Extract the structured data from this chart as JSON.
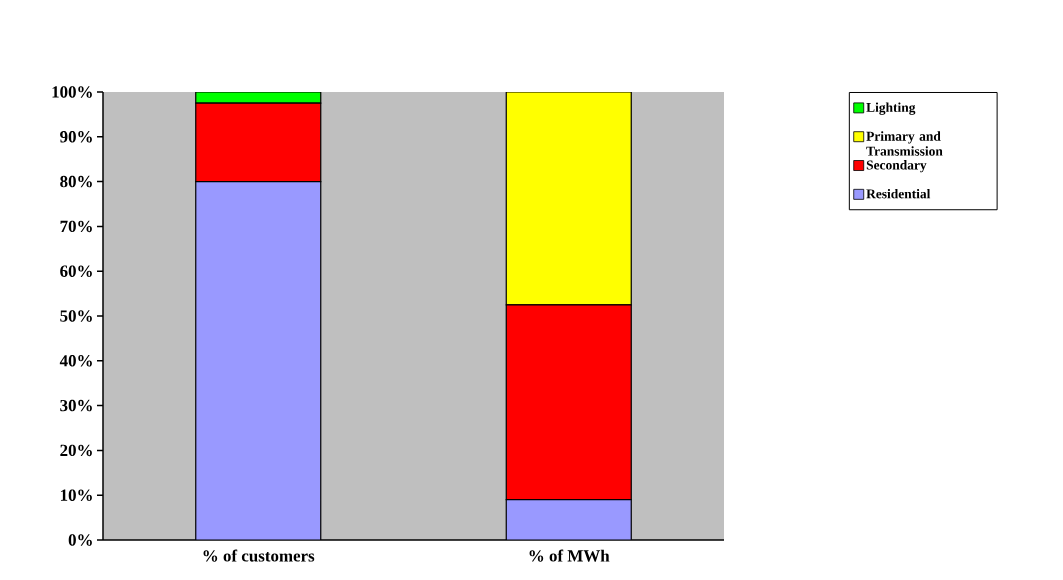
{
  "chart_data": {
    "type": "bar",
    "stacked": true,
    "legend": "right",
    "categories": [
      "% of customers",
      "% of MWh"
    ],
    "series": [
      {
        "name": "Residential",
        "color": "#9999ff",
        "values": [
          80,
          9
        ]
      },
      {
        "name": "Secondary",
        "color": "#ff0000",
        "values": [
          17.5,
          43.5
        ]
      },
      {
        "name": "Primary and Transmission",
        "color": "#ffff00",
        "values": [
          0,
          47.5
        ]
      },
      {
        "name": "Lighting",
        "color": "#00ff00",
        "values": [
          2.5,
          0
        ]
      }
    ],
    "ylim": [
      0,
      100
    ],
    "yticks": [
      {
        "value": 0,
        "label": "0%"
      },
      {
        "value": 10,
        "label": "10%"
      },
      {
        "value": 20,
        "label": "20%"
      },
      {
        "value": 30,
        "label": "30%"
      },
      {
        "value": 40,
        "label": "40%"
      },
      {
        "value": 50,
        "label": "50%"
      },
      {
        "value": 60,
        "label": "60%"
      },
      {
        "value": 70,
        "label": "70%"
      },
      {
        "value": 80,
        "label": "80%"
      },
      {
        "value": 90,
        "label": "90%"
      },
      {
        "value": 100,
        "label": "100%"
      }
    ]
  }
}
